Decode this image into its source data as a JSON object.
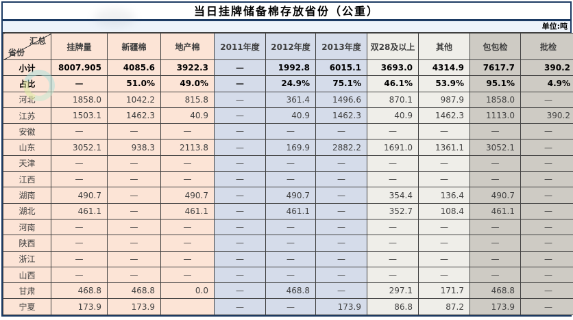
{
  "title": "当日挂牌储备棉存放省份（公重）",
  "unit_note": "单位:吨",
  "corner": {
    "top": "汇总",
    "bottom": "省份"
  },
  "columns": [
    "挂牌量",
    "新疆棉",
    "地产棉",
    "2011年度",
    "2012年度",
    "2013年度",
    "双28及以上",
    "其他",
    "包包检",
    "批检"
  ],
  "rows": [
    {
      "name": "小计",
      "bold": true,
      "values": [
        "8007.905",
        "4085.6",
        "3922.3",
        "—",
        "1992.8",
        "6015.1",
        "3693.0",
        "4314.9",
        "7617.7",
        "390.2"
      ]
    },
    {
      "name": "占比",
      "bold": true,
      "values": [
        "—",
        "51.0%",
        "49.0%",
        "—",
        "24.9%",
        "75.1%",
        "46.1%",
        "53.9%",
        "95.1%",
        "4.9%"
      ]
    },
    {
      "name": "河北",
      "bold": false,
      "values": [
        "1858.0",
        "1042.2",
        "815.8",
        "—",
        "361.4",
        "1496.6",
        "870.1",
        "987.9",
        "1858.0",
        "—"
      ]
    },
    {
      "name": "江苏",
      "bold": false,
      "values": [
        "1503.1",
        "1462.3",
        "40.9",
        "—",
        "40.9",
        "1462.3",
        "40.9",
        "1462.3",
        "1113.0",
        "390.2"
      ]
    },
    {
      "name": "安徽",
      "bold": false,
      "values": [
        "—",
        "—",
        "—",
        "—",
        "—",
        "—",
        "—",
        "—",
        "—",
        "—"
      ]
    },
    {
      "name": "山东",
      "bold": false,
      "values": [
        "3052.1",
        "938.3",
        "2113.8",
        "—",
        "169.9",
        "2882.2",
        "1691.0",
        "1361.1",
        "3052.1",
        "—"
      ]
    },
    {
      "name": "天津",
      "bold": false,
      "values": [
        "—",
        "—",
        "—",
        "—",
        "—",
        "—",
        "—",
        "—",
        "—",
        "—"
      ]
    },
    {
      "name": "江西",
      "bold": false,
      "values": [
        "—",
        "—",
        "—",
        "—",
        "—",
        "—",
        "—",
        "—",
        "—",
        "—"
      ]
    },
    {
      "name": "湖南",
      "bold": false,
      "values": [
        "490.7",
        "—",
        "490.7",
        "—",
        "490.7",
        "—",
        "354.4",
        "136.4",
        "490.7",
        "—"
      ]
    },
    {
      "name": "湖北",
      "bold": false,
      "values": [
        "461.1",
        "—",
        "461.1",
        "—",
        "461.1",
        "—",
        "352.7",
        "108.4",
        "461.1",
        "—"
      ]
    },
    {
      "name": "河南",
      "bold": false,
      "values": [
        "—",
        "—",
        "—",
        "—",
        "—",
        "—",
        "—",
        "—",
        "—",
        "—"
      ]
    },
    {
      "name": "陕西",
      "bold": false,
      "values": [
        "—",
        "—",
        "—",
        "—",
        "—",
        "—",
        "—",
        "—",
        "—",
        "—"
      ]
    },
    {
      "name": "浙江",
      "bold": false,
      "values": [
        "—",
        "—",
        "—",
        "—",
        "—",
        "—",
        "—",
        "—",
        "—",
        "—"
      ]
    },
    {
      "name": "山西",
      "bold": false,
      "values": [
        "—",
        "—",
        "—",
        "—",
        "—",
        "—",
        "—",
        "—",
        "—",
        "—"
      ]
    },
    {
      "name": "甘肃",
      "bold": false,
      "values": [
        "468.8",
        "468.8",
        "0.0",
        "—",
        "468.8",
        "—",
        "297.1",
        "171.7",
        "468.8",
        "—"
      ]
    },
    {
      "name": "宁夏",
      "bold": false,
      "values": [
        "173.9",
        "173.9",
        "",
        "—",
        "—",
        "173.9",
        "86.8",
        "87.2",
        "173.9",
        "—"
      ]
    }
  ],
  "colors": {
    "frame": "#1b3a63",
    "grid_line": "#404040",
    "col_group_domestic": "#fce4d6",
    "col_group_year": "#d5dcea",
    "col_group_quality": "#efeee9",
    "col_group_inspection": "#cecbc4",
    "unit_row_bg": "#edf3fa",
    "watermark_teal": "#a9e2dc",
    "watermark_green": "#dcec9e"
  }
}
